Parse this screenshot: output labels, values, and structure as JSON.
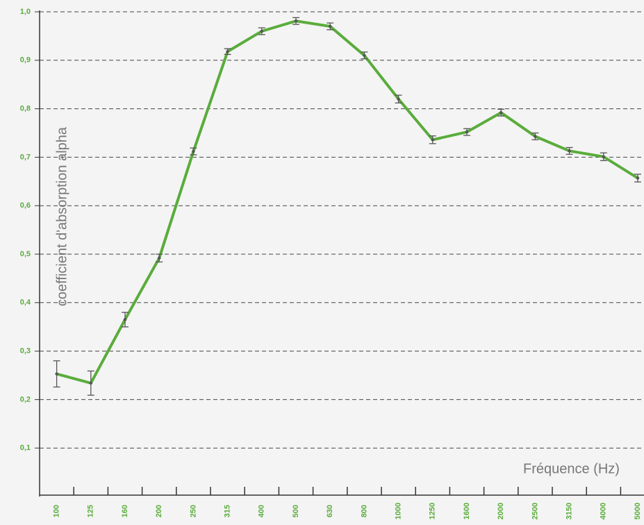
{
  "chart_data": {
    "type": "line",
    "x_label": "Fréquence (Hz)",
    "y_label": "coefficient d'absorption alpha",
    "categories": [
      "100",
      "125",
      "160",
      "200",
      "250",
      "315",
      "400",
      "500",
      "630",
      "800",
      "1000",
      "1250",
      "1600",
      "2000",
      "2500",
      "3150",
      "4000",
      "5000"
    ],
    "values": [
      0.253,
      0.234,
      0.365,
      0.492,
      0.712,
      0.918,
      0.96,
      0.981,
      0.97,
      0.91,
      0.82,
      0.736,
      0.752,
      0.792,
      0.743,
      0.713,
      0.701,
      0.657
    ],
    "errors": [
      0.027,
      0.025,
      0.015,
      0.008,
      0.007,
      0.006,
      0.007,
      0.007,
      0.007,
      0.007,
      0.008,
      0.008,
      0.007,
      0.007,
      0.007,
      0.007,
      0.008,
      0.008
    ],
    "color": "#5aac3c",
    "error_color": "#555555",
    "ylim": [
      0,
      1
    ],
    "yticks": [
      {
        "value": 0.1,
        "label": "0,1"
      },
      {
        "value": 0.2,
        "label": "0,2"
      },
      {
        "value": 0.3,
        "label": "0,3"
      },
      {
        "value": 0.4,
        "label": "0,4"
      },
      {
        "value": 0.5,
        "label": "0,5"
      },
      {
        "value": 0.6,
        "label": "0,6"
      },
      {
        "value": 0.7,
        "label": "0,7"
      },
      {
        "value": 0.8,
        "label": "0,8"
      },
      {
        "value": 0.9,
        "label": "0,9"
      },
      {
        "value": 1.0,
        "label": "1,0"
      }
    ],
    "grid": true
  }
}
